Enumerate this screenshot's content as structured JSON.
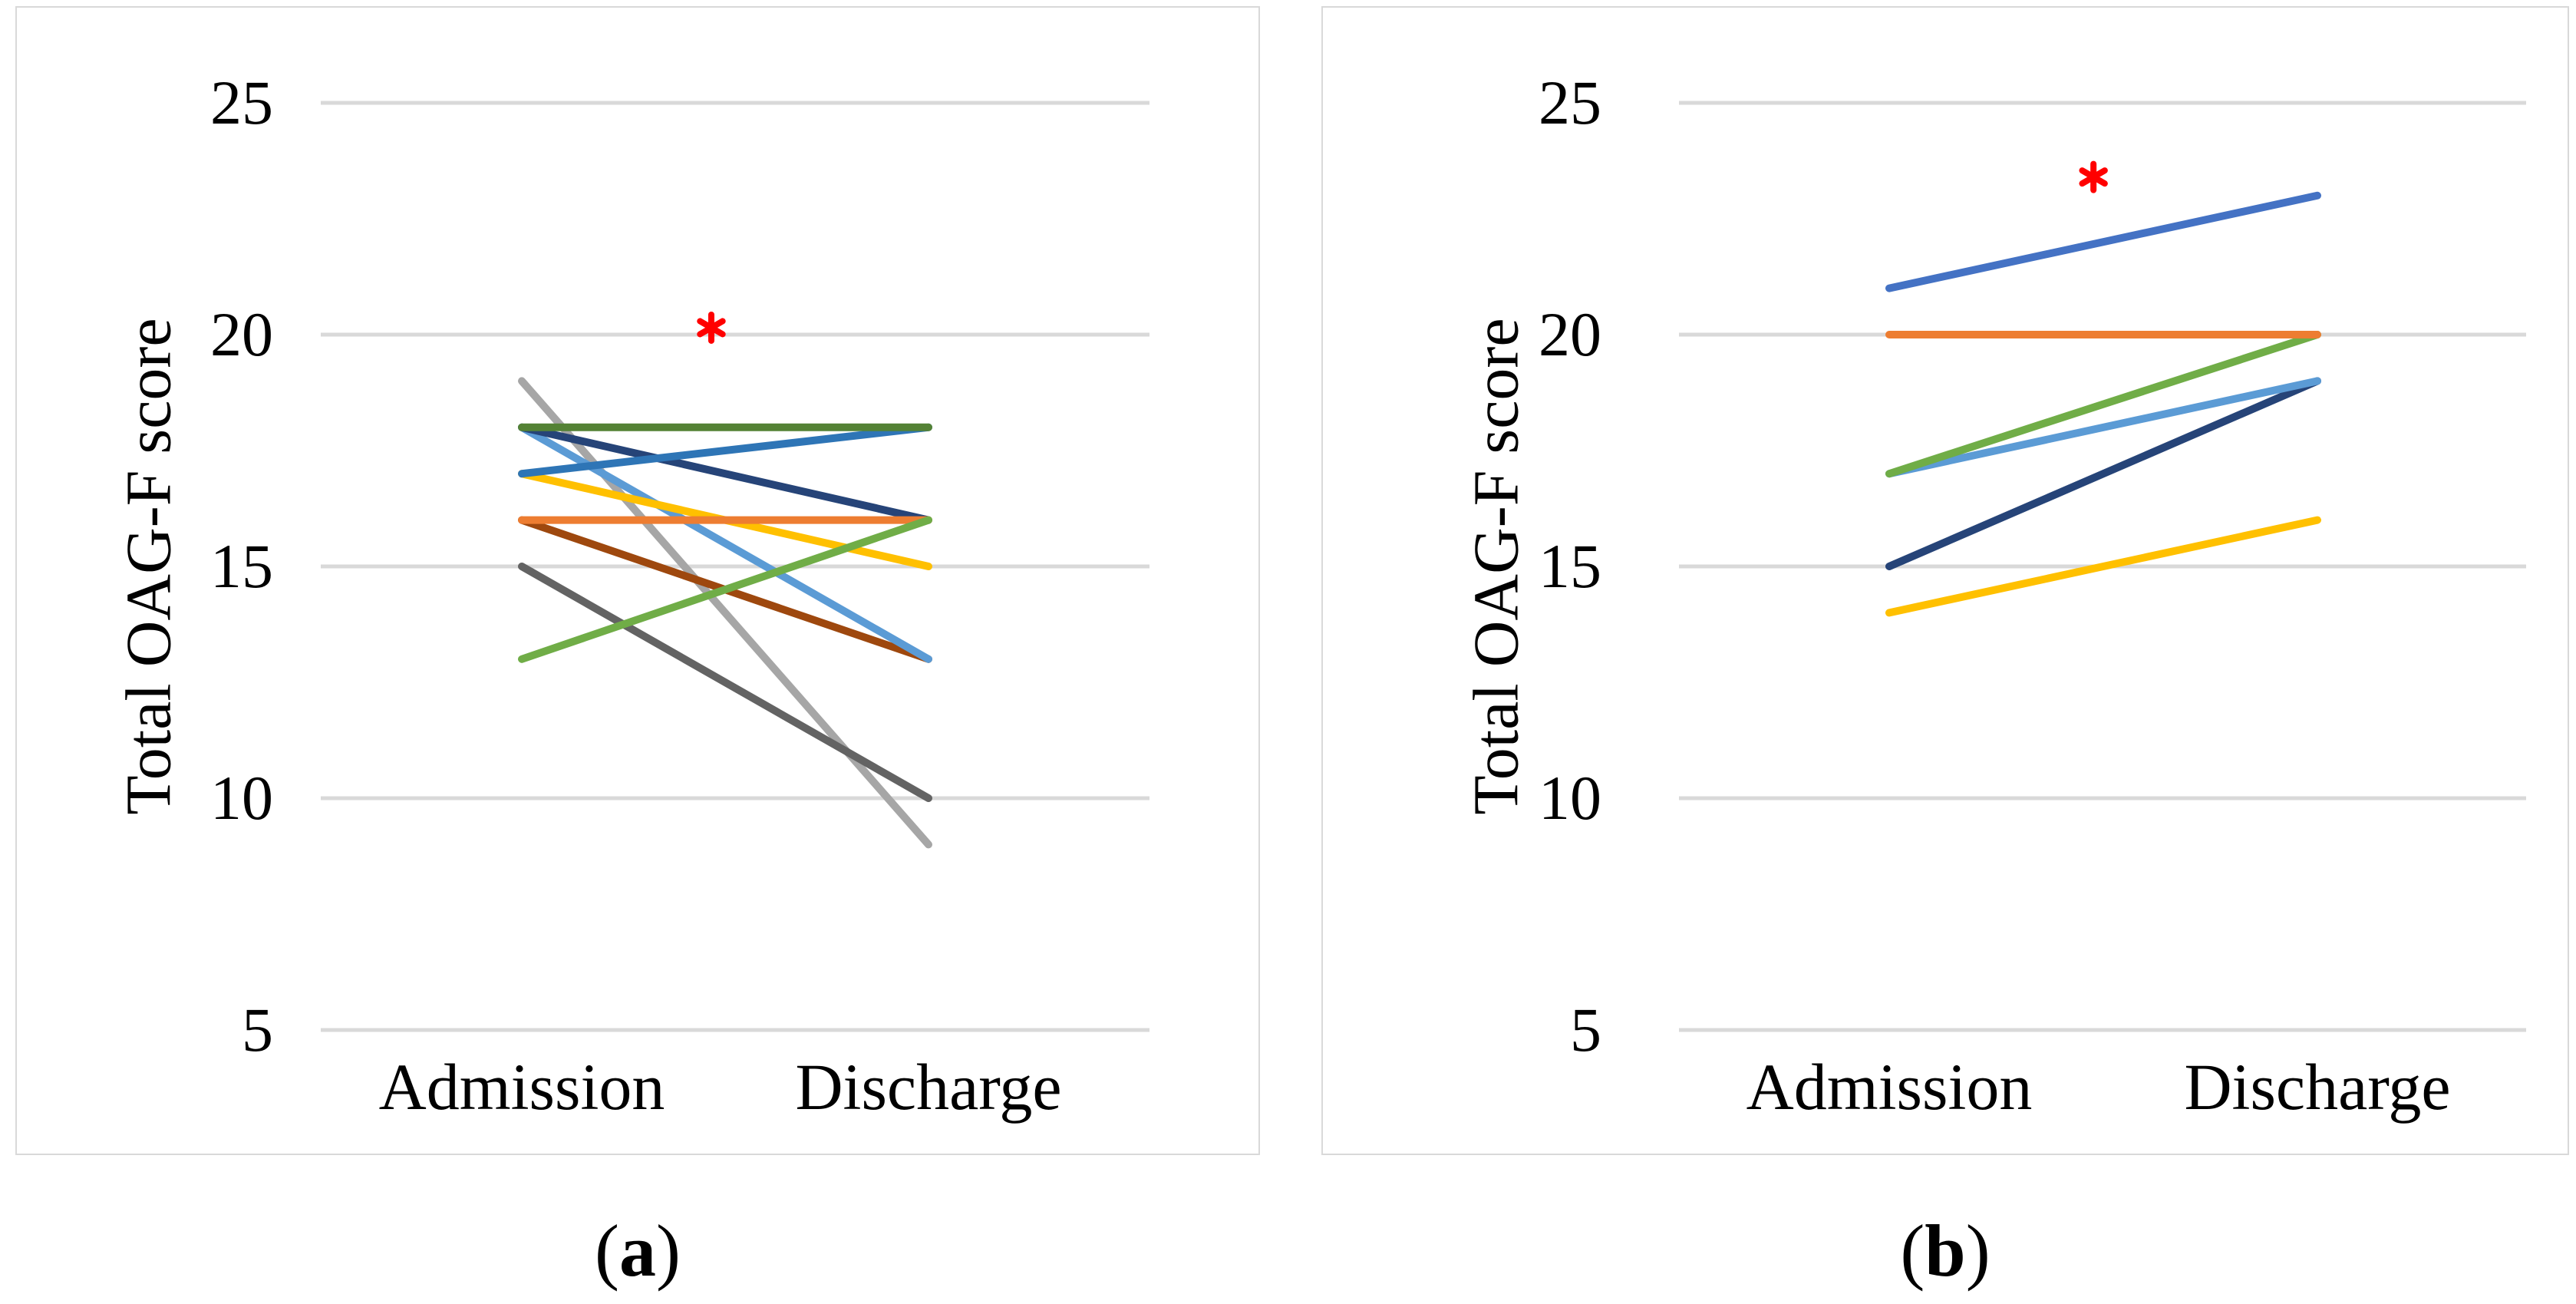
{
  "page": {
    "background": "#FFFFFF"
  },
  "axis_shared": {
    "y_title": "Total OAG-F score",
    "y_ticks": [
      25,
      20,
      15,
      10,
      5
    ],
    "categories": [
      "Admission",
      "Discharge"
    ],
    "gridline_color": "#D9D9D9",
    "panel_border_color": "#D9D9D9",
    "text_color": "#000000"
  },
  "chart_data": [
    {
      "id": "a",
      "type": "line",
      "subtype": "paired-slope",
      "caption_parts": {
        "open": "(",
        "letter": "a",
        "close": ")"
      },
      "categories": [
        "Admission",
        "Discharge"
      ],
      "ylabel": "Total OAG-F score",
      "yticks": [
        25,
        20,
        15,
        10,
        5
      ],
      "ylim": [
        2.5,
        27
      ],
      "grid": true,
      "legend": false,
      "series": [
        {
          "name": "s1",
          "color": "#A6A6A6",
          "values": [
            19,
            9
          ]
        },
        {
          "name": "s2",
          "color": "#636363",
          "values": [
            15,
            10
          ]
        },
        {
          "name": "s3",
          "color": "#9E480E",
          "values": [
            16,
            13
          ]
        },
        {
          "name": "s4",
          "color": "#5B9BD5",
          "values": [
            18,
            13
          ]
        },
        {
          "name": "s5",
          "color": "#FFC000",
          "values": [
            17,
            15
          ]
        },
        {
          "name": "s6",
          "color": "#264478",
          "values": [
            18,
            16
          ]
        },
        {
          "name": "s7",
          "color": "#ED7D31",
          "values": [
            16,
            16
          ]
        },
        {
          "name": "s8",
          "color": "#2E75B6",
          "values": [
            17,
            18
          ]
        },
        {
          "name": "s9",
          "color": "#70AD47",
          "values": [
            13,
            16
          ]
        },
        {
          "name": "s10",
          "color": "#548235",
          "values": [
            18,
            18
          ]
        }
      ],
      "annotation": {
        "symbol": "*",
        "color": "#FF0000",
        "x_frac": 0.466,
        "y_value": 20.15
      }
    },
    {
      "id": "b",
      "type": "line",
      "subtype": "paired-slope",
      "caption_parts": {
        "open": "(",
        "letter": "b",
        "close": ")"
      },
      "categories": [
        "Admission",
        "Discharge"
      ],
      "ylabel": "Total OAG-F score",
      "yticks": [
        25,
        20,
        15,
        10,
        5
      ],
      "ylim": [
        2.5,
        27
      ],
      "grid": true,
      "legend": false,
      "series": [
        {
          "name": "s1",
          "color": "#264478",
          "values": [
            15,
            19
          ]
        },
        {
          "name": "s2",
          "color": "#5B9BD5",
          "values": [
            17,
            19
          ]
        },
        {
          "name": "s3",
          "color": "#FFC000",
          "values": [
            14,
            16
          ]
        },
        {
          "name": "s4",
          "color": "#70AD47",
          "values": [
            17,
            20
          ]
        },
        {
          "name": "s5",
          "color": "#4472C4",
          "values": [
            21,
            23
          ]
        },
        {
          "name": "s6",
          "color": "#ED7D31",
          "values": [
            20,
            20
          ]
        }
      ],
      "annotation": {
        "symbol": "*",
        "color": "#FF0000",
        "x_frac": 0.477,
        "y_value": 23.4
      }
    }
  ]
}
